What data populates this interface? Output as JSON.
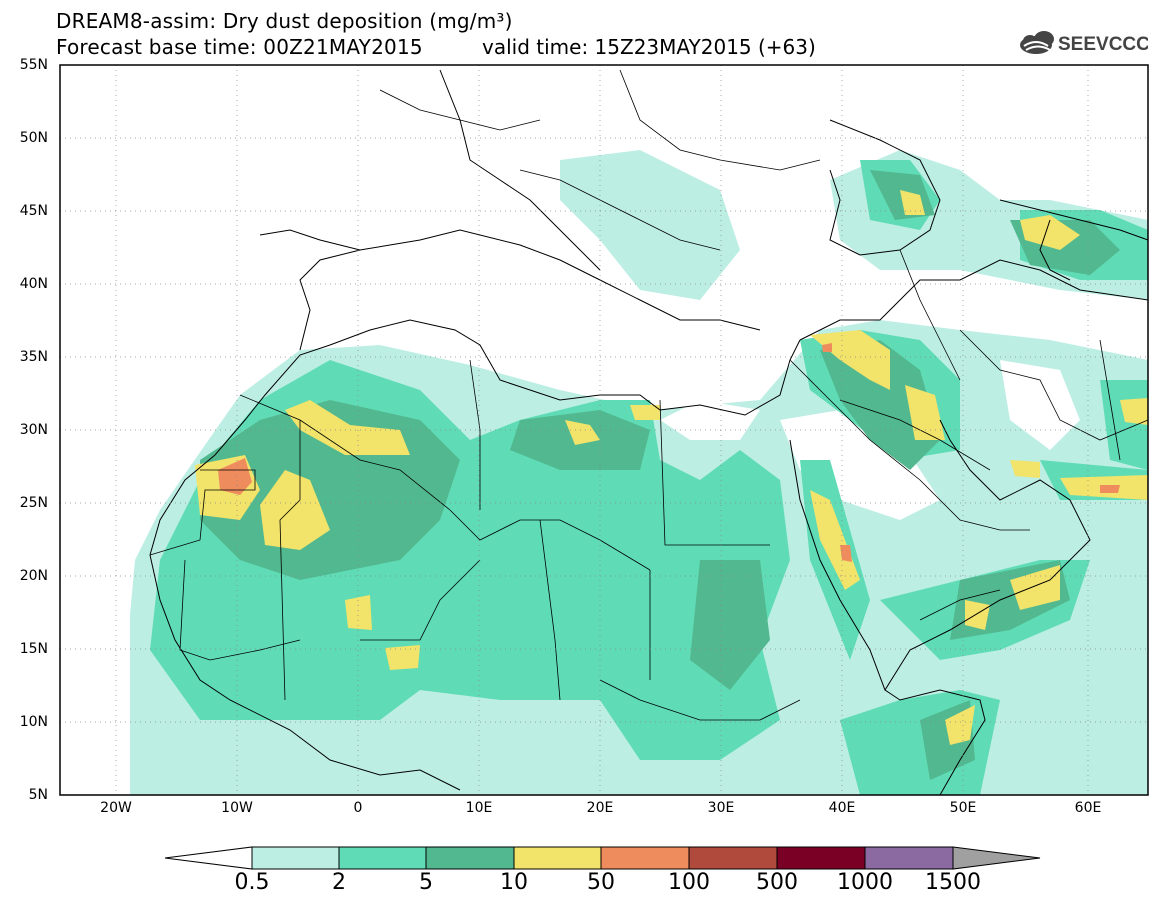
{
  "header": {
    "title_line1": "DREAM8-assim: Dry dust deposition (mg/m³)",
    "title_line2": "Forecast base time: 00Z21MAY2015",
    "valid_time": "valid time: 15Z23MAY2015 (+63)",
    "logo_text": "SEEVCCC"
  },
  "map": {
    "lat_labels": [
      "55N",
      "50N",
      "45N",
      "40N",
      "35N",
      "30N",
      "25N",
      "20N",
      "15N",
      "10N",
      "5N"
    ],
    "lon_labels": [
      "20W",
      "10W",
      "0",
      "10E",
      "20E",
      "30E",
      "40E",
      "50E",
      "60E"
    ],
    "colors": {
      "level1": "#bdeee4",
      "level2": "#5fdcb6",
      "level3": "#52b88f",
      "level4": "#f2e36a",
      "level5": "#ef8c5e",
      "level6": "#b04a3c",
      "level7": "#7a0026",
      "level8": "#8a6aa0",
      "level9": "#a0a0a0"
    }
  },
  "colorbar": {
    "labels": [
      "0.5",
      "2",
      "5",
      "10",
      "50",
      "100",
      "500",
      "1000",
      "1500"
    ]
  }
}
